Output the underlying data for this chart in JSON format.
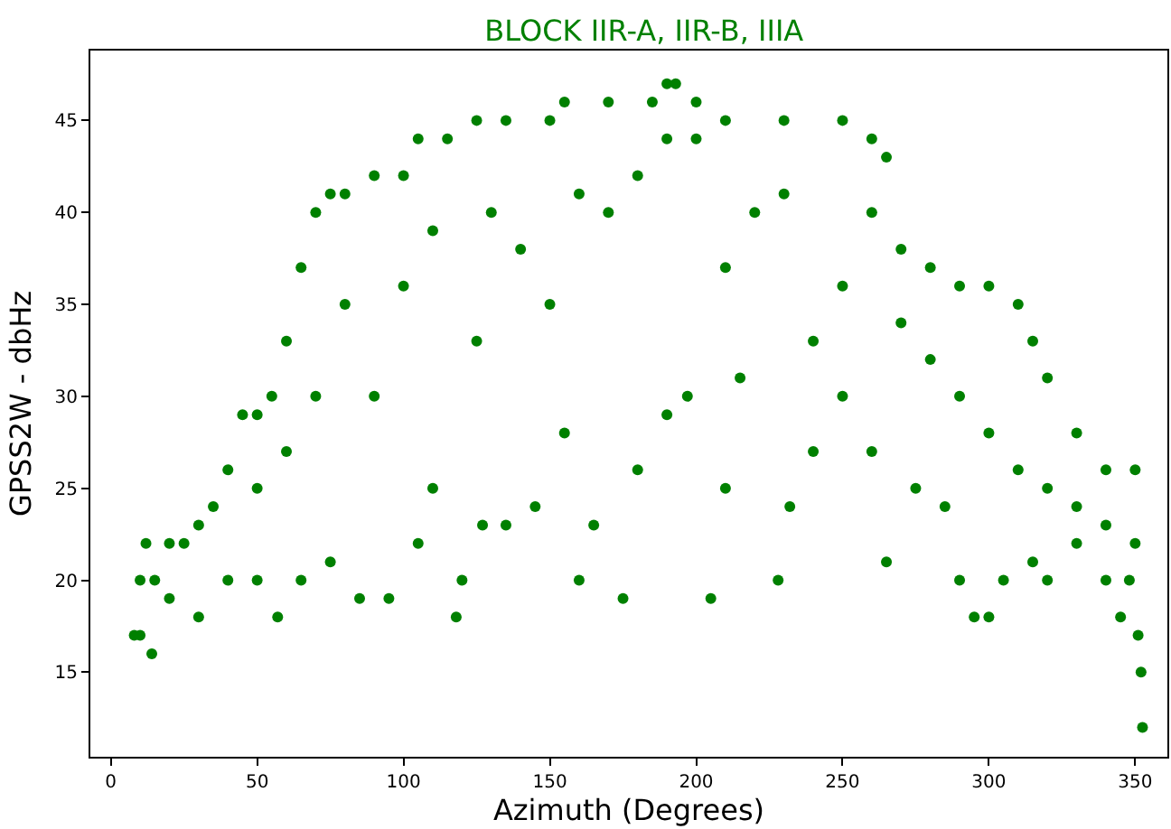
{
  "chart_data": {
    "type": "scatter",
    "title": "BLOCK IIR-A, IIR-B, IIIA",
    "xlabel": "Azimuth (Degrees)",
    "ylabel": "GPSS2W - dbHz",
    "xlim": [
      -7,
      361
    ],
    "ylim": [
      10.4,
      48.8
    ],
    "xticks": [
      0,
      50,
      100,
      150,
      200,
      250,
      300,
      350
    ],
    "yticks": [
      15,
      20,
      25,
      30,
      35,
      40,
      45
    ],
    "series": [
      {
        "color": "#008000",
        "x": [
          8,
          10,
          12,
          15,
          20,
          25,
          30,
          35,
          40,
          45,
          50,
          55,
          60,
          65,
          70,
          75,
          80,
          90,
          100,
          105,
          115,
          125,
          135,
          150,
          155,
          170,
          185,
          190,
          193,
          200,
          210,
          230,
          250,
          260,
          265,
          270,
          280,
          290,
          300,
          310,
          315,
          320,
          330,
          340,
          350,
          351,
          352,
          352.5,
          10,
          14,
          20,
          30,
          40,
          50,
          57,
          65,
          75,
          85,
          95,
          105,
          110,
          118,
          120,
          127,
          135,
          145,
          155,
          160,
          165,
          175,
          180,
          190,
          197,
          205,
          210,
          215,
          228,
          232,
          240,
          250,
          260,
          265,
          275,
          285,
          290,
          295,
          300,
          305,
          315,
          320,
          330,
          340,
          345,
          348,
          50,
          60,
          70,
          80,
          90,
          100,
          110,
          125,
          130,
          140,
          150,
          160,
          170,
          180,
          190,
          200,
          210,
          220,
          230,
          240,
          250,
          260,
          270,
          280,
          290,
          300,
          310,
          320,
          330,
          340,
          350
        ],
        "values": [
          17,
          20,
          22,
          20,
          22,
          22,
          23,
          24,
          26,
          29,
          29,
          30,
          33,
          37,
          40,
          41,
          41,
          42,
          42,
          44,
          44,
          45,
          45,
          45,
          46,
          46,
          46,
          47,
          47,
          46,
          45,
          45,
          45,
          44,
          43,
          38,
          37,
          36,
          36,
          35,
          33,
          31,
          28,
          26,
          26,
          17,
          15,
          12,
          17,
          16,
          19,
          18,
          20,
          20,
          18,
          20,
          21,
          19,
          19,
          22,
          25,
          18,
          20,
          23,
          23,
          24,
          28,
          20,
          23,
          19,
          26,
          29,
          30,
          19,
          25,
          31,
          20,
          24,
          27,
          30,
          27,
          21,
          25,
          24,
          20,
          18,
          18,
          20,
          21,
          20,
          22,
          20,
          18,
          20,
          25,
          27,
          30,
          35,
          30,
          36,
          39,
          33,
          40,
          38,
          35,
          41,
          40,
          42,
          44,
          44,
          37,
          40,
          41,
          33,
          36,
          40,
          34,
          32,
          30,
          28,
          26,
          25,
          24,
          23,
          22
        ]
      }
    ]
  }
}
